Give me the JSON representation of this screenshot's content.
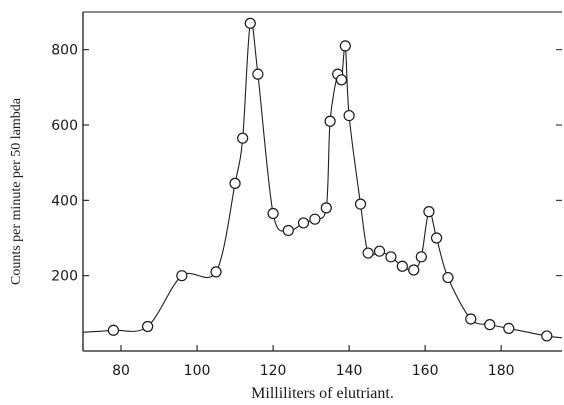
{
  "chart_data": {
    "type": "line",
    "title": "",
    "xlabel": "Milliliters of elutriant.",
    "ylabel": "Counts per minute per 50 lambda",
    "xlim": [
      70,
      196
    ],
    "ylim": [
      0,
      900
    ],
    "xticks": [
      80,
      100,
      120,
      140,
      160,
      180
    ],
    "yticks": [
      200,
      400,
      600,
      800
    ],
    "xtick_labels": [
      "80",
      "100",
      "120",
      "140",
      "160",
      "180"
    ],
    "ytick_labels": [
      "200",
      "400",
      "600",
      "800"
    ],
    "grid": false,
    "marker": "open-circle",
    "series": [
      {
        "points": [
          [
            78,
            55
          ],
          [
            87,
            65
          ],
          [
            96,
            200
          ],
          [
            105,
            210
          ],
          [
            110,
            445
          ],
          [
            112,
            565
          ],
          [
            114,
            870
          ],
          [
            116,
            735
          ],
          [
            120,
            365
          ],
          [
            124,
            320
          ],
          [
            128,
            340
          ],
          [
            131,
            350
          ],
          [
            134,
            380
          ],
          [
            135,
            610
          ],
          [
            137,
            735
          ],
          [
            138,
            720
          ],
          [
            139,
            810
          ],
          [
            140,
            625
          ],
          [
            143,
            390
          ],
          [
            145,
            260
          ],
          [
            148,
            265
          ],
          [
            151,
            250
          ],
          [
            154,
            225
          ],
          [
            157,
            215
          ],
          [
            159,
            250
          ],
          [
            161,
            370
          ],
          [
            163,
            300
          ],
          [
            166,
            195
          ],
          [
            172,
            85
          ],
          [
            177,
            70
          ],
          [
            182,
            60
          ],
          [
            192,
            40
          ]
        ]
      }
    ]
  }
}
